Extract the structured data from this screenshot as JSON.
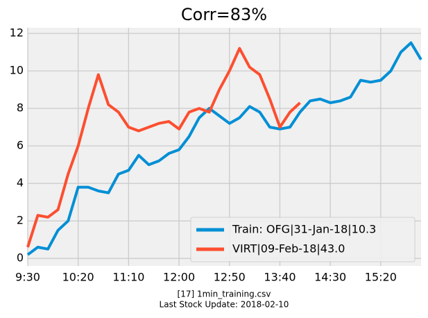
{
  "chart_data": {
    "type": "line",
    "title": "Corr=83%",
    "footer": [
      "[17] 1min_training.csv",
      "Last Stock Update: 2018-02-10"
    ],
    "x": [
      570,
      580,
      590,
      600,
      610,
      620,
      630,
      640,
      650,
      660,
      670,
      680,
      690,
      700,
      710,
      720,
      730,
      740,
      750,
      760,
      770,
      780,
      790,
      800,
      810,
      820,
      830,
      840,
      850,
      860,
      870,
      880,
      890,
      900,
      910,
      920,
      930,
      940,
      950,
      960
    ],
    "series": [
      {
        "name": "Train: OFG|31-Jan-18|10.3",
        "color": "#008fd5",
        "values": [
          0.2,
          0.6,
          0.5,
          1.5,
          2.0,
          3.8,
          3.8,
          3.6,
          3.5,
          4.5,
          4.7,
          5.5,
          5.0,
          5.2,
          5.6,
          5.8,
          6.5,
          7.5,
          8.0,
          7.6,
          7.2,
          7.5,
          8.1,
          7.8,
          7.0,
          6.9,
          7.0,
          7.8,
          8.4,
          8.5,
          8.3,
          8.4,
          8.6,
          9.5,
          9.4,
          9.5,
          10.0,
          11.0,
          11.5,
          10.6
        ]
      },
      {
        "name": "VIRT|09-Feb-18|43.0",
        "color": "#fc4f30",
        "values": [
          0.6,
          2.3,
          2.2,
          2.6,
          4.5,
          6.0,
          8.0,
          9.8,
          8.2,
          7.8,
          7.0,
          6.8,
          7.0,
          7.2,
          7.3,
          6.9,
          7.8,
          8.0,
          7.8,
          9.0,
          10.0,
          11.2,
          10.2,
          9.8,
          8.5,
          7.0,
          7.8,
          8.3,
          null,
          null,
          null,
          null,
          null,
          null,
          null,
          null,
          null,
          null,
          null,
          null
        ]
      }
    ],
    "xlim": [
      570,
      960
    ],
    "ylim": [
      -0.4,
      12.3
    ],
    "xticks": [
      {
        "value": 570,
        "label": "9:30"
      },
      {
        "value": 620,
        "label": "10:20"
      },
      {
        "value": 670,
        "label": "11:10"
      },
      {
        "value": 720,
        "label": "12:00"
      },
      {
        "value": 770,
        "label": "12:50"
      },
      {
        "value": 820,
        "label": "13:40"
      },
      {
        "value": 870,
        "label": "14:30"
      },
      {
        "value": 920,
        "label": "15:20"
      }
    ],
    "yticks": [
      0,
      2,
      4,
      6,
      8,
      10,
      12
    ],
    "grid": true,
    "legend": "lower right"
  }
}
